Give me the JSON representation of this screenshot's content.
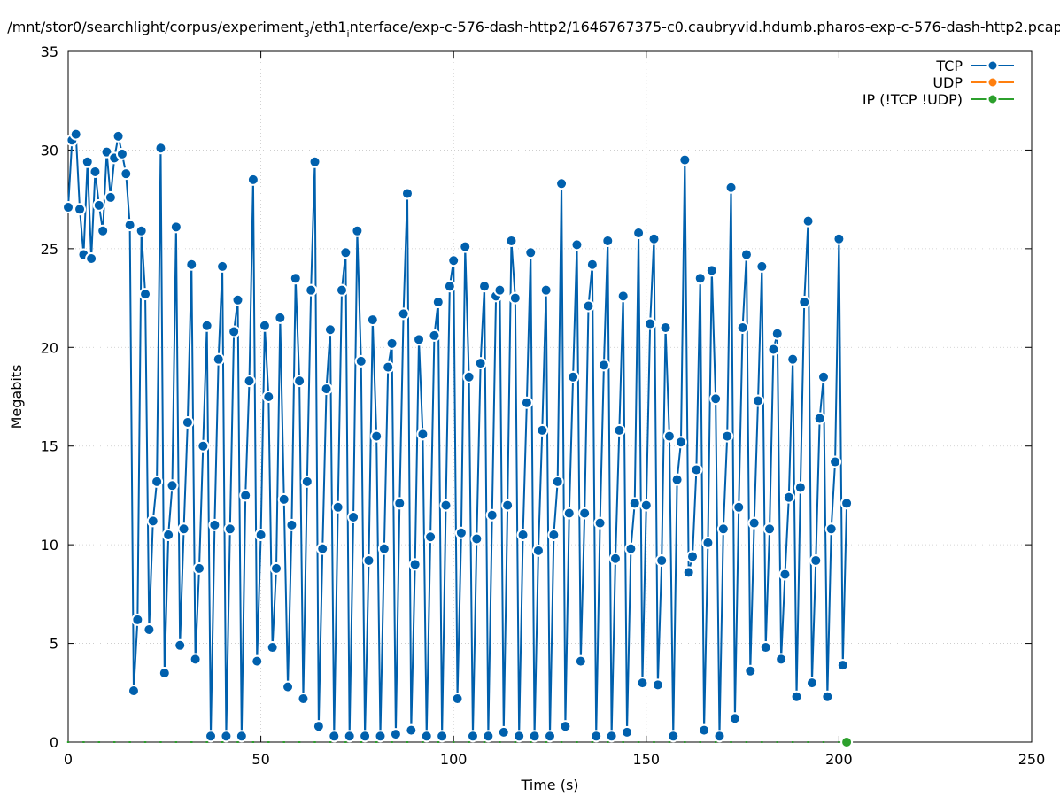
{
  "chart_data": {
    "type": "line",
    "title": "/mnt/stor0/searchlight/corpus/experiment_3/eth1_interface/exp-c-576-dash-http2/1646767375-c0.caubryvid.hdumb.pharos-exp-c-576-dash-http2.pcap",
    "title_parts": {
      "p1": "/mnt/stor0/searchlight/corpus/experiment",
      "s1": "3",
      "p2": "/eth1",
      "s2": "i",
      "p3": "nterface/exp-c-576-dash-http2/1646767375-c0.caubryvid.hdumb.pharos-exp-c-576-dash-http2.pcap"
    },
    "xlabel": "Time (s)",
    "ylabel": "Megabits",
    "xlim": [
      0,
      250
    ],
    "ylim": [
      0,
      35
    ],
    "xticks": [
      0,
      50,
      100,
      150,
      200,
      250
    ],
    "yticks": [
      0,
      5,
      10,
      15,
      20,
      25,
      30,
      35
    ],
    "grid": true,
    "legend_position": "top-right",
    "series": [
      {
        "name": "TCP",
        "color": "#0060ad",
        "x": [
          0,
          1,
          2,
          3,
          4,
          5,
          6,
          7,
          8,
          9,
          10,
          11,
          12,
          13,
          14,
          15,
          16,
          17,
          18,
          19,
          20,
          21,
          22,
          23,
          24,
          25,
          26,
          27,
          28,
          29,
          30,
          31,
          32,
          33,
          34,
          35,
          36,
          37,
          38,
          39,
          40,
          41,
          42,
          43,
          44,
          45,
          46,
          47,
          48,
          49,
          50,
          51,
          52,
          53,
          54,
          55,
          56,
          57,
          58,
          59,
          60,
          61,
          62,
          63,
          64,
          65,
          66,
          67,
          68,
          69,
          70,
          71,
          72,
          73,
          74,
          75,
          76,
          77,
          78,
          79,
          80,
          81,
          82,
          83,
          84,
          85,
          86,
          87,
          88,
          89,
          90,
          91,
          92,
          93,
          94,
          95,
          96,
          97,
          98,
          99,
          100,
          101,
          102,
          103,
          104,
          105,
          106,
          107,
          108,
          109,
          110,
          111,
          112,
          113,
          114,
          115,
          116,
          117,
          118,
          119,
          120,
          121,
          122,
          123,
          124,
          125,
          126,
          127,
          128,
          129,
          130,
          131,
          132,
          133,
          134,
          135,
          136,
          137,
          138,
          139,
          140,
          141,
          142,
          143,
          144,
          145,
          146,
          147,
          148,
          149,
          150,
          151,
          152,
          153,
          154,
          155,
          156,
          157,
          158,
          159,
          160,
          161,
          162,
          163,
          164,
          165,
          166,
          167,
          168,
          169,
          170,
          171,
          172,
          173,
          174,
          175,
          176,
          177,
          178,
          179,
          180,
          181,
          182,
          183,
          184,
          185,
          186,
          187,
          188,
          189,
          190,
          191,
          192,
          193,
          194,
          195,
          196,
          197,
          198,
          199,
          200,
          201,
          202
        ],
        "values": [
          27.1,
          30.5,
          30.8,
          27.0,
          24.7,
          29.4,
          24.5,
          28.9,
          27.2,
          25.9,
          29.9,
          27.6,
          29.6,
          30.7,
          29.8,
          28.8,
          26.2,
          2.6,
          6.2,
          25.9,
          22.7,
          5.7,
          11.2,
          13.2,
          30.1,
          3.5,
          10.5,
          13.0,
          26.1,
          4.9,
          10.8,
          16.2,
          24.2,
          4.2,
          8.8,
          15.0,
          21.1,
          0.3,
          11.0,
          19.4,
          24.1,
          0.3,
          10.8,
          20.8,
          22.4,
          0.3,
          12.5,
          18.3,
          28.5,
          4.1,
          10.5,
          21.1,
          17.5,
          4.8,
          8.8,
          21.5,
          12.3,
          2.8,
          11.0,
          23.5,
          18.3,
          2.2,
          13.2,
          22.9,
          29.4,
          0.8,
          9.8,
          17.9,
          20.9,
          0.3,
          11.9,
          22.9,
          24.8,
          0.3,
          11.4,
          25.9,
          19.3,
          0.3,
          9.2,
          21.4,
          15.5,
          0.3,
          9.8,
          19.0,
          20.2,
          0.4,
          12.1,
          21.7,
          27.8,
          0.6,
          9.0,
          20.4,
          15.6,
          0.3,
          10.4,
          20.6,
          22.3,
          0.3,
          12.0,
          23.1,
          24.4,
          2.2,
          10.6,
          25.1,
          18.5,
          0.3,
          10.3,
          19.2,
          23.1,
          0.3,
          11.5,
          22.6,
          22.9,
          0.5,
          12.0,
          25.4,
          22.5,
          0.3,
          10.5,
          17.2,
          24.8,
          0.3,
          9.7,
          15.8,
          22.9,
          0.3,
          10.5,
          13.2,
          28.3,
          0.8,
          11.6,
          18.5,
          25.2,
          4.1,
          11.6,
          22.1,
          24.2,
          0.3,
          11.1,
          19.1,
          25.4,
          0.3,
          9.3,
          15.8,
          22.6,
          0.5,
          9.8,
          12.1,
          25.8,
          3.0,
          12.0,
          21.2,
          25.5,
          2.9,
          9.2,
          21.0,
          15.5,
          0.3,
          13.3,
          15.2,
          29.5,
          8.6,
          9.4,
          13.8,
          23.5,
          0.6,
          10.1,
          23.9,
          17.4,
          0.3,
          10.8,
          15.5,
          28.1,
          1.2,
          11.9,
          21.0,
          24.7,
          3.6,
          11.1,
          17.3,
          24.1,
          4.8,
          10.8,
          19.9,
          20.7,
          4.2,
          8.5,
          12.4,
          19.4,
          2.3,
          12.9,
          22.3,
          26.4,
          3.0,
          9.2,
          16.4,
          18.5,
          2.3,
          10.8,
          14.2,
          25.5,
          3.9,
          12.1
        ]
      },
      {
        "name": "UDP",
        "color": "#ff7f0e",
        "x": [],
        "values": []
      },
      {
        "name": "IP (!TCP  !UDP)",
        "color": "#2ca02c",
        "x": [
          202
        ],
        "values": [
          0.0
        ]
      }
    ]
  }
}
